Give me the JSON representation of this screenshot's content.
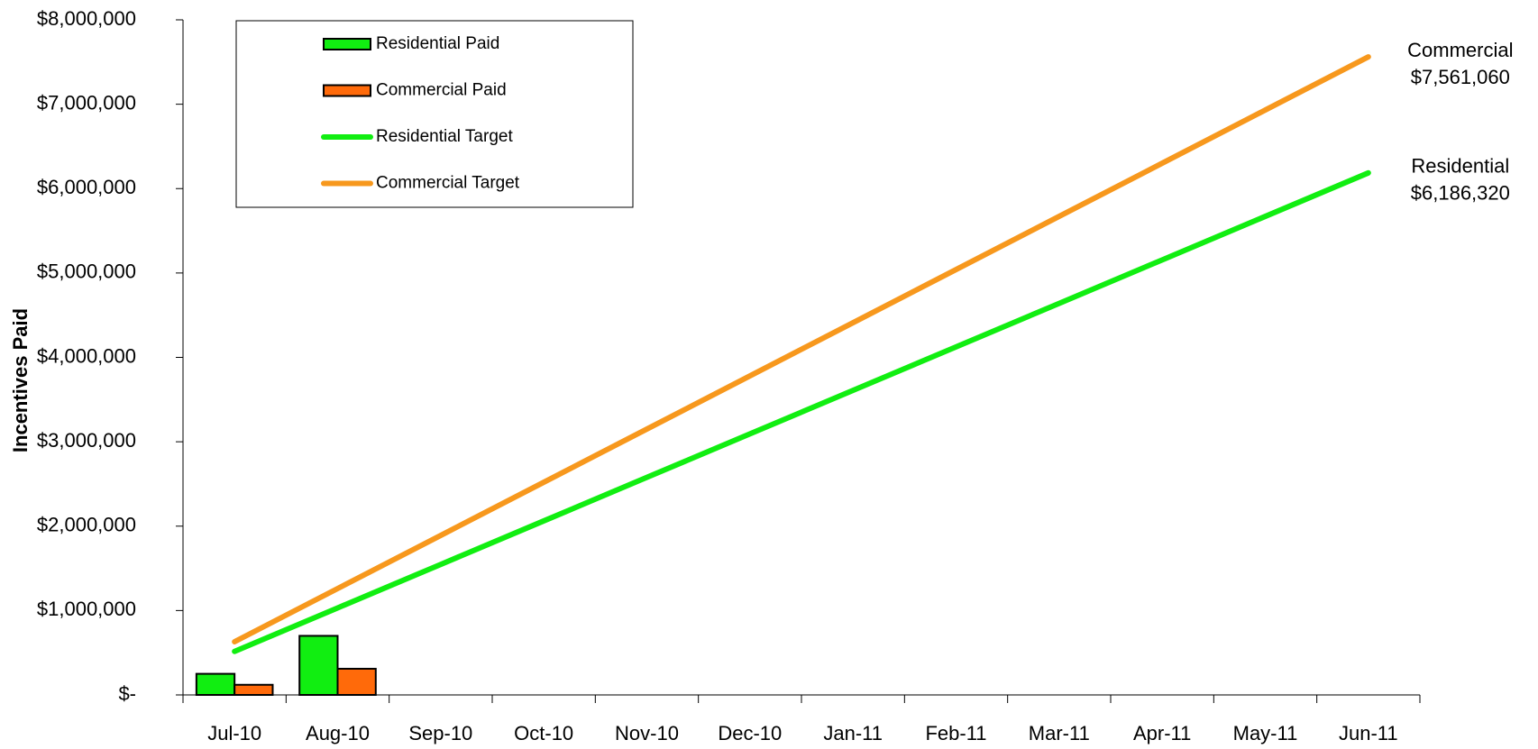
{
  "chart_data": {
    "type": "bar",
    "y_label": "Incentives Paid",
    "categories": [
      "Jul-10",
      "Aug-10",
      "Sep-10",
      "Oct-10",
      "Nov-10",
      "Dec-10",
      "Jan-11",
      "Feb-11",
      "Mar-11",
      "Apr-11",
      "May-11",
      "Jun-11"
    ],
    "series": [
      {
        "name": "Residential Paid",
        "type": "bar",
        "color": "#11ee11",
        "values": [
          250000,
          700000,
          null,
          null,
          null,
          null,
          null,
          null,
          null,
          null,
          null,
          null
        ]
      },
      {
        "name": "Commercial Paid",
        "type": "bar",
        "color": "#ff6a0a",
        "values": [
          120000,
          310000,
          null,
          null,
          null,
          null,
          null,
          null,
          null,
          null,
          null,
          null
        ]
      },
      {
        "name": "Residential Target",
        "type": "line",
        "color": "#11ee11",
        "end_name": "Residential",
        "values": [
          515527,
          1031053,
          1546580,
          2062107,
          2577633,
          3093160,
          3608687,
          4124213,
          4639740,
          5155267,
          5670793,
          6186320
        ],
        "value_labels": [
          null,
          null,
          null,
          null,
          null,
          null,
          null,
          null,
          null,
          null,
          null,
          "$6,186,320"
        ]
      },
      {
        "name": "Commercial Target",
        "type": "line",
        "color": "#f7981d",
        "end_name": "Commercial",
        "values": [
          630088,
          1260177,
          1890265,
          2520353,
          3150442,
          3780530,
          4410618,
          5040707,
          5670795,
          6300883,
          6930972,
          7561060
        ],
        "value_labels": [
          null,
          null,
          null,
          null,
          null,
          null,
          null,
          null,
          null,
          null,
          null,
          "$7,561,060"
        ]
      }
    ],
    "ylim": [
      0,
      8000000
    ],
    "yticks": [
      {
        "value": 0,
        "label": "$-"
      },
      {
        "value": 1000000,
        "label": "$1,000,000"
      },
      {
        "value": 2000000,
        "label": "$2,000,000"
      },
      {
        "value": 3000000,
        "label": "$3,000,000"
      },
      {
        "value": 4000000,
        "label": "$4,000,000"
      },
      {
        "value": 5000000,
        "label": "$5,000,000"
      },
      {
        "value": 6000000,
        "label": "$6,000,000"
      },
      {
        "value": 7000000,
        "label": "$7,000,000"
      },
      {
        "value": 8000000,
        "label": "$8,000,000"
      }
    ],
    "grid": false,
    "legend": "top-left"
  }
}
